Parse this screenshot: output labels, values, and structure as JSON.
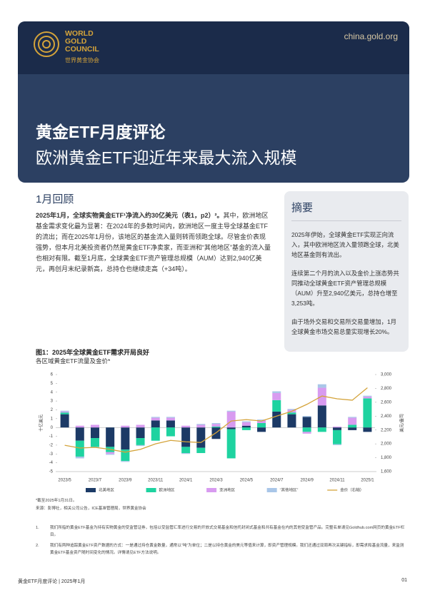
{
  "header": {
    "org_lines": [
      "WORLD",
      "GOLD",
      "COUNCIL"
    ],
    "org_cn": "世界黄金协会",
    "website": "china.gold.org"
  },
  "title": {
    "main": "黄金ETF月度评论",
    "sub": "欧洲黄金ETF迎近年来最大流入规模"
  },
  "review": {
    "heading": "1月回顾",
    "lead": "2025年1月，全球实物黄金ETF¹净流入约30亿美元（表1，p2）²。",
    "body": "其中，欧洲地区基金需求变化最为显著：在2024年的多数时间内，欧洲地区一度主导全球基金ETF的流出；而在2025年1月份，该地区的基金流入量则转而领跑全球。尽管金价表现强势，但本月北美投资者仍然是黄金ETF净卖家，而亚洲和“其他地区”基金的流入量也相对有限。截至1月底，全球黄金ETF资产管理总规模（AUM）达到2,940亿美元，再创月末纪录新高，总持仓也继续走高（+34吨）。"
  },
  "summary": {
    "heading": "摘要",
    "paragraphs": [
      "2025年伊始，全球黄金ETF实现正向流入，其中欧洲地区流入量领跑全球，北美地区基金则有流出。",
      "连续第二个月的流入以及金价上涨态势共同推动全球黄金ETF资产管理总规模（AUM）升至2,940亿美元，总持仓增至3,253吨。",
      "由于场外交易和交易所交易量增加，1月全球黄金市场交易总量实现增长20%。"
    ]
  },
  "figure": {
    "title": "图1：2025年全球黄金ETF需求开局良好",
    "subtitle": "各区域黄金ETF流量及金价*",
    "chart_data": {
      "type": "bar",
      "stacked": true,
      "ylabel": "十亿美元",
      "y2label": "美元/盎司",
      "categories": [
        "2023/5",
        null,
        "2023/7",
        null,
        "2023/9",
        null,
        "2023/11",
        null,
        "2024/1",
        null,
        "2024/3",
        null,
        "2024/5",
        null,
        "2024/7",
        null,
        "2024/9",
        null,
        "2024/11",
        null,
        "2025/1"
      ],
      "series": [
        {
          "name": "北美地区",
          "color": "#1c3a66",
          "values": [
            1.5,
            -1.5,
            -1.2,
            -2.2,
            -2.5,
            -1.2,
            0.8,
            0.8,
            -2.2,
            -2.3,
            -1.3,
            -0.2,
            0.2,
            -0.5,
            1.8,
            1.5,
            1.2,
            2.5,
            -0.3,
            -0.3,
            -0.5
          ]
        },
        {
          "name": "欧洲地区",
          "color": "#1ed3a0",
          "values": [
            0.2,
            -1.8,
            -1.0,
            -0.6,
            -1.3,
            -0.8,
            -1.5,
            -1.0,
            -0.7,
            -0.6,
            0.1,
            -3.3,
            -0.3,
            0.5,
            1.3,
            0.2,
            -0.5,
            -0.5,
            -1.6,
            0.3,
            3.3
          ]
        },
        {
          "name": "亚洲地区",
          "color": "#d89bf0",
          "values": [
            0.1,
            0.2,
            0.3,
            -0.2,
            0.2,
            0.3,
            0.3,
            0.3,
            0.2,
            0.3,
            0.3,
            1.8,
            0.4,
            0.3,
            0.8,
            0.3,
            -0.2,
            2.0,
            0.1,
            0.8,
            0.2
          ]
        },
        {
          "name": "“其他地区”",
          "color": "#a9c6e8",
          "values": [
            0.1,
            -0.2,
            -0.1,
            -0.1,
            -0.1,
            -0.1,
            0.1,
            0.1,
            -0.1,
            0.1,
            0.1,
            0.1,
            0.1,
            0.1,
            0.2,
            0.1,
            0.1,
            0.4,
            -0.1,
            0.1,
            0.1
          ]
        },
        {
          "name": "金价（右轴）",
          "color": "#d4a33a",
          "type": "line",
          "axis": "y2",
          "values": [
            1980,
            1940,
            1950,
            1920,
            1880,
            1920,
            2000,
            2050,
            2030,
            2020,
            2160,
            2330,
            2350,
            2330,
            2400,
            2470,
            2570,
            2690,
            2650,
            2630,
            2810
          ]
        }
      ],
      "ylim": [
        -5,
        6
      ],
      "yticks": [
        -5,
        -4,
        -3,
        -2,
        -1,
        0,
        1,
        2,
        3,
        4,
        5,
        6
      ],
      "y2lim": [
        1600,
        3000
      ],
      "y2ticks": [
        {
          "value": 1600,
          "label": "1,600"
        },
        {
          "value": 1800,
          "label": "1,800"
        },
        {
          "value": 2000,
          "label": "2,000"
        },
        {
          "value": 2200,
          "label": "2,200"
        },
        {
          "value": 2400,
          "label": "2,400"
        },
        {
          "value": 2600,
          "label": "2,600"
        },
        {
          "value": 2800,
          "label": "2,800"
        },
        {
          "value": 3000,
          "label": "3,000"
        }
      ],
      "grid": false,
      "legend": "bottom"
    },
    "note": "*截至2025年1月31日。",
    "source": "来源：彭博社，相关公司公告，ICE基准管理局，世界黄金协会"
  },
  "footnotes": [
    {
      "number": "1.",
      "text": "我们所指的黄金ETF基金为持有实物黄金的受监管证券，包括以受监管汇率进行交易的开放式交易基金和信托封闭式基金和共有基金在内的其他受监管产品。完整名单请见Goldhub.com网页的黄金ETF栏目。"
    },
    {
      "number": "2.",
      "text": "我们有两种追踪黄金ETF资产数据的方式：一是通过持仓黄金数量，通常以“吨”为单位；二是以持仓黄金的美元等值来计算，即资产管理规模。我们还通过双周再次关键指标，即需求和基金流量，来监测黄金ETF基金资产随时间变化的情况。详情请见ETF方法说明。"
    }
  ],
  "footer": {
    "left": "黄金ETF月度评论 | 2025年1月",
    "page": "01"
  }
}
